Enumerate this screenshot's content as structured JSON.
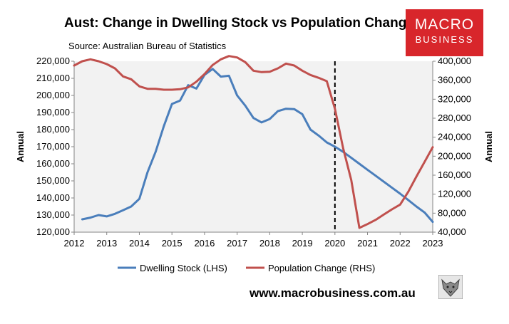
{
  "header": {
    "title": "Aust: Change in Dwelling Stock vs Population Change",
    "subtitle": "Source: Australian Bureau of Statistics"
  },
  "logo": {
    "line1": "MACRO",
    "line2": "BUSINESS",
    "color": "#d8262b"
  },
  "footer": {
    "website": "www.macrobusiness.com.au"
  },
  "chart_data": {
    "type": "line",
    "xlim": [
      2012,
      2023
    ],
    "x_ticks": [
      "2012",
      "2013",
      "2014",
      "2015",
      "2016",
      "2017",
      "2018",
      "2019",
      "2020",
      "2021",
      "2022",
      "2023"
    ],
    "y_left": {
      "label": "Annual",
      "lim": [
        120000,
        220000
      ],
      "ticks": [
        "120,000",
        "130,000",
        "140,000",
        "150,000",
        "160,000",
        "170,000",
        "180,000",
        "190,000",
        "200,000",
        "210,000",
        "220,000"
      ]
    },
    "y_right": {
      "label": "Annual",
      "lim": [
        40000,
        400000
      ],
      "ticks": [
        "40,000",
        "80,000",
        "120,000",
        "160,000",
        "200,000",
        "240,000",
        "280,000",
        "320,000",
        "360,000",
        "400,000"
      ]
    },
    "grid": false,
    "plot_background": "#f2f2f2",
    "vertical_marker": {
      "x": 2020.0,
      "style": "dashed",
      "color": "#000000"
    },
    "legend_position": "bottom",
    "series": [
      {
        "name": "Dwelling Stock (LHS)",
        "axis": "left",
        "color": "#4a7ebb",
        "points": [
          [
            2012.25,
            127500
          ],
          [
            2012.5,
            128500
          ],
          [
            2012.75,
            130000
          ],
          [
            2013.0,
            129200
          ],
          [
            2013.25,
            130700
          ],
          [
            2013.5,
            132800
          ],
          [
            2013.75,
            135000
          ],
          [
            2014.0,
            139500
          ],
          [
            2014.25,
            155000
          ],
          [
            2014.5,
            167000
          ],
          [
            2014.75,
            182000
          ],
          [
            2015.0,
            195000
          ],
          [
            2015.25,
            197000
          ],
          [
            2015.5,
            206000
          ],
          [
            2015.75,
            204000
          ],
          [
            2016.0,
            212000
          ],
          [
            2016.25,
            215500
          ],
          [
            2016.5,
            211000
          ],
          [
            2016.75,
            211500
          ],
          [
            2017.0,
            200000
          ],
          [
            2017.25,
            194000
          ],
          [
            2017.5,
            186800
          ],
          [
            2017.75,
            184200
          ],
          [
            2018.0,
            186200
          ],
          [
            2018.25,
            190800
          ],
          [
            2018.5,
            192200
          ],
          [
            2018.75,
            192000
          ],
          [
            2019.0,
            189000
          ],
          [
            2019.25,
            180000
          ],
          [
            2019.5,
            176500
          ],
          [
            2019.75,
            172500
          ],
          [
            2020.0,
            170000
          ],
          [
            2020.25,
            167000
          ],
          [
            2020.5,
            163500
          ],
          [
            2020.75,
            160000
          ],
          [
            2021.0,
            156500
          ],
          [
            2021.25,
            153000
          ],
          [
            2021.5,
            149500
          ],
          [
            2021.75,
            146000
          ],
          [
            2022.0,
            142500
          ],
          [
            2022.25,
            138800
          ],
          [
            2022.5,
            135000
          ],
          [
            2022.75,
            131500
          ],
          [
            2023.0,
            126000
          ]
        ]
      },
      {
        "name": "Population Change (RHS)",
        "axis": "right",
        "color": "#c0504d",
        "points": [
          [
            2012.0,
            391000
          ],
          [
            2012.25,
            400000
          ],
          [
            2012.5,
            404000
          ],
          [
            2012.75,
            400000
          ],
          [
            2013.0,
            394000
          ],
          [
            2013.25,
            385000
          ],
          [
            2013.5,
            368000
          ],
          [
            2013.75,
            362000
          ],
          [
            2014.0,
            347000
          ],
          [
            2014.25,
            342000
          ],
          [
            2014.5,
            342000
          ],
          [
            2014.75,
            340000
          ],
          [
            2015.0,
            340000
          ],
          [
            2015.25,
            341000
          ],
          [
            2015.5,
            345000
          ],
          [
            2015.75,
            357000
          ],
          [
            2016.0,
            373000
          ],
          [
            2016.25,
            392000
          ],
          [
            2016.5,
            404000
          ],
          [
            2016.75,
            411000
          ],
          [
            2017.0,
            408000
          ],
          [
            2017.25,
            398000
          ],
          [
            2017.5,
            380000
          ],
          [
            2017.75,
            377000
          ],
          [
            2018.0,
            378000
          ],
          [
            2018.25,
            385000
          ],
          [
            2018.5,
            395000
          ],
          [
            2018.75,
            391000
          ],
          [
            2019.0,
            380000
          ],
          [
            2019.25,
            371000
          ],
          [
            2019.5,
            365000
          ],
          [
            2019.75,
            358000
          ],
          [
            2020.0,
            300000
          ],
          [
            2020.25,
            217000
          ],
          [
            2020.5,
            150000
          ],
          [
            2020.75,
            49000
          ],
          [
            2021.0,
            57000
          ],
          [
            2021.25,
            66000
          ],
          [
            2021.5,
            77000
          ],
          [
            2021.75,
            88000
          ],
          [
            2022.0,
            98000
          ],
          [
            2022.25,
            125000
          ],
          [
            2022.5,
            157000
          ],
          [
            2022.75,
            188000
          ],
          [
            2023.0,
            219000
          ]
        ]
      }
    ]
  }
}
